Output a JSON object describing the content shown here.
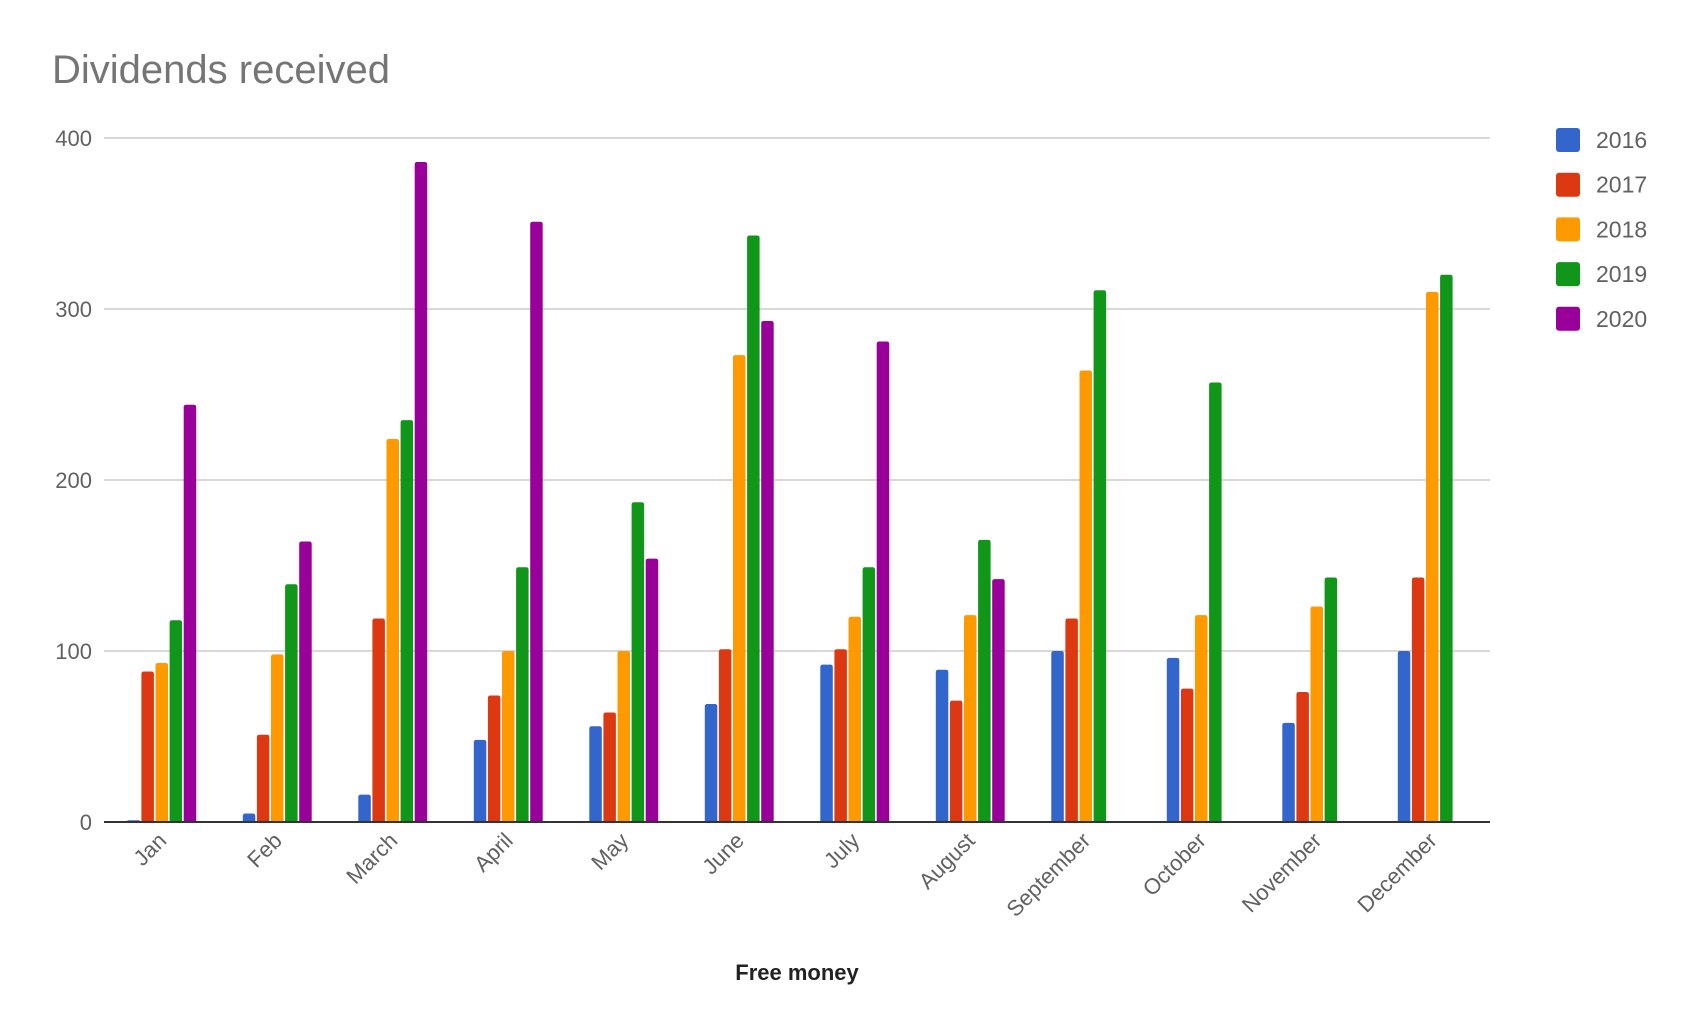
{
  "chart_data": {
    "type": "bar",
    "title": "Dividends received",
    "xlabel": "Free money",
    "ylabel": "",
    "ylim": [
      0,
      400
    ],
    "yticks": [
      0,
      100,
      200,
      300,
      400
    ],
    "grid": true,
    "legend_position": "right",
    "categories": [
      "Jan",
      "Feb",
      "March",
      "April",
      "May",
      "June",
      "July",
      "August",
      "September",
      "October",
      "November",
      "December"
    ],
    "series": [
      {
        "name": "2016",
        "color": "#3366cc",
        "values": [
          1,
          5,
          16,
          48,
          56,
          69,
          92,
          89,
          100,
          96,
          58,
          100
        ]
      },
      {
        "name": "2017",
        "color": "#dc3912",
        "values": [
          88,
          51,
          119,
          74,
          64,
          101,
          101,
          71,
          119,
          78,
          76,
          143
        ]
      },
      {
        "name": "2018",
        "color": "#ff9900",
        "values": [
          93,
          98,
          224,
          100,
          100,
          273,
          120,
          121,
          264,
          121,
          126,
          310
        ]
      },
      {
        "name": "2019",
        "color": "#109618",
        "values": [
          118,
          139,
          235,
          149,
          187,
          343,
          149,
          165,
          311,
          257,
          143,
          320
        ]
      },
      {
        "name": "2020",
        "color": "#990099",
        "values": [
          244,
          164,
          386,
          351,
          154,
          293,
          281,
          142,
          null,
          null,
          null,
          null
        ]
      }
    ]
  }
}
